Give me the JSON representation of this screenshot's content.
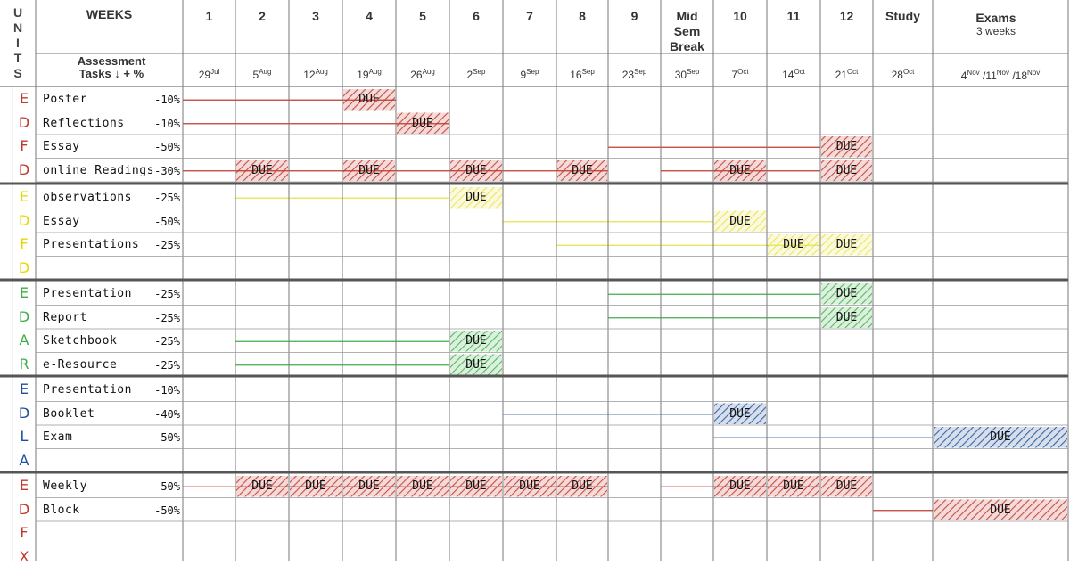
{
  "header": {
    "units_letters": [
      "U",
      "N",
      "I",
      "T",
      "S"
    ],
    "weeks_label": "WEEKS",
    "assessment_label_1": "Assessment",
    "assessment_label_2": "Tasks ↓ + %",
    "week_columns": [
      {
        "num": "1",
        "date": "29",
        "mon": "Jul"
      },
      {
        "num": "2",
        "date": "5",
        "mon": "Aug"
      },
      {
        "num": "3",
        "date": "12",
        "mon": "Aug"
      },
      {
        "num": "4",
        "date": "19",
        "mon": "Aug"
      },
      {
        "num": "5",
        "date": "26",
        "mon": "Aug"
      },
      {
        "num": "6",
        "date": "2",
        "mon": "Sep"
      },
      {
        "num": "7",
        "date": "9",
        "mon": "Sep"
      },
      {
        "num": "8",
        "date": "16",
        "mon": "Sep"
      },
      {
        "num": "9",
        "date": "23",
        "mon": "Sep"
      },
      {
        "num": "Mid\nSem\nBreak",
        "date": "30",
        "mon": "Sep"
      },
      {
        "num": "10",
        "date": "7",
        "mon": "Oct"
      },
      {
        "num": "11",
        "date": "14",
        "mon": "Oct"
      },
      {
        "num": "12",
        "date": "21",
        "mon": "Oct"
      },
      {
        "num": "Study",
        "date": "28",
        "mon": "Oct"
      }
    ],
    "exams_label": "Exams",
    "exams_sub": "3 weeks",
    "exams_dates": "4Nov /11Nov /18Nov"
  },
  "due_label": "DUE",
  "colors": {
    "red": "#c0392b",
    "yellow": "#e8e34a",
    "green": "#3fae4a",
    "blue": "#1f4f99",
    "grey": "#777777",
    "dark": "#555555"
  },
  "units": [
    {
      "letters": [
        "E",
        "D",
        "F",
        "D"
      ],
      "color": "#c0392b",
      "tasks": [
        {
          "name": "Poster",
          "pct": "-10%",
          "line": [
            0,
            4
          ],
          "due": [
            3
          ]
        },
        {
          "name": "Reflections",
          "pct": "-10%",
          "line": [
            0,
            5
          ],
          "due": [
            4
          ]
        },
        {
          "name": "Essay",
          "pct": "-50%",
          "line": [
            8,
            12
          ],
          "due": [
            12
          ]
        },
        {
          "name": "online Readings",
          "pct": "-30%",
          "line": [
            0,
            12
          ],
          "due": [
            1,
            3,
            5,
            7,
            10,
            12
          ],
          "skip": [
            8
          ]
        }
      ]
    },
    {
      "letters": [
        "E",
        "D",
        "F",
        "D"
      ],
      "color": "#e8e34a",
      "tasks": [
        {
          "name": "observations",
          "pct": "-25%",
          "line": [
            1,
            5
          ],
          "due": [
            5
          ]
        },
        {
          "name": "Essay",
          "pct": "-50%",
          "line": [
            6,
            10
          ],
          "due": [
            10
          ]
        },
        {
          "name": "Presentations",
          "pct": "-25%",
          "line": [
            7,
            12
          ],
          "due": [
            11,
            12
          ]
        },
        {
          "name": "",
          "pct": "",
          "line": null,
          "due": []
        }
      ]
    },
    {
      "letters": [
        "E",
        "D",
        "A",
        "R"
      ],
      "color": "#3fae4a",
      "tasks": [
        {
          "name": "Presentation",
          "pct": "-25%",
          "line": [
            8,
            12
          ],
          "due": [
            12
          ]
        },
        {
          "name": "Report",
          "pct": "-25%",
          "line": [
            8,
            12
          ],
          "due": [
            12
          ]
        },
        {
          "name": "Sketchbook",
          "pct": "-25%",
          "line": [
            1,
            5
          ],
          "due": [
            5
          ]
        },
        {
          "name": "e-Resource",
          "pct": "-25%",
          "line": [
            1,
            5
          ],
          "due": [
            5
          ]
        }
      ]
    },
    {
      "letters": [
        "E",
        "D",
        "L",
        "A"
      ],
      "color": "#1f4f99",
      "tasks": [
        {
          "name": "Presentation",
          "pct": "-10%",
          "line": null,
          "due": []
        },
        {
          "name": "Booklet",
          "pct": "-40%",
          "line": [
            6,
            10
          ],
          "due": [
            10
          ]
        },
        {
          "name": "Exam",
          "pct": "-50%",
          "line": [
            10,
            14
          ],
          "due": [
            14
          ]
        },
        {
          "name": "",
          "pct": "",
          "line": null,
          "due": []
        }
      ]
    },
    {
      "letters": [
        "E",
        "D",
        "F",
        "X"
      ],
      "color": "#c0392b",
      "tasks": [
        {
          "name": "Weekly",
          "pct": "-50%",
          "line": [
            0,
            12
          ],
          "due": [
            1,
            2,
            3,
            4,
            5,
            6,
            7,
            10,
            11,
            12
          ],
          "skip": [
            8
          ]
        },
        {
          "name": "Block",
          "pct": "-50%",
          "line": [
            13,
            14
          ],
          "due": [
            14
          ]
        },
        {
          "name": "",
          "pct": "",
          "line": null,
          "due": []
        },
        {
          "name": "",
          "pct": "",
          "line": null,
          "due": []
        }
      ]
    }
  ]
}
